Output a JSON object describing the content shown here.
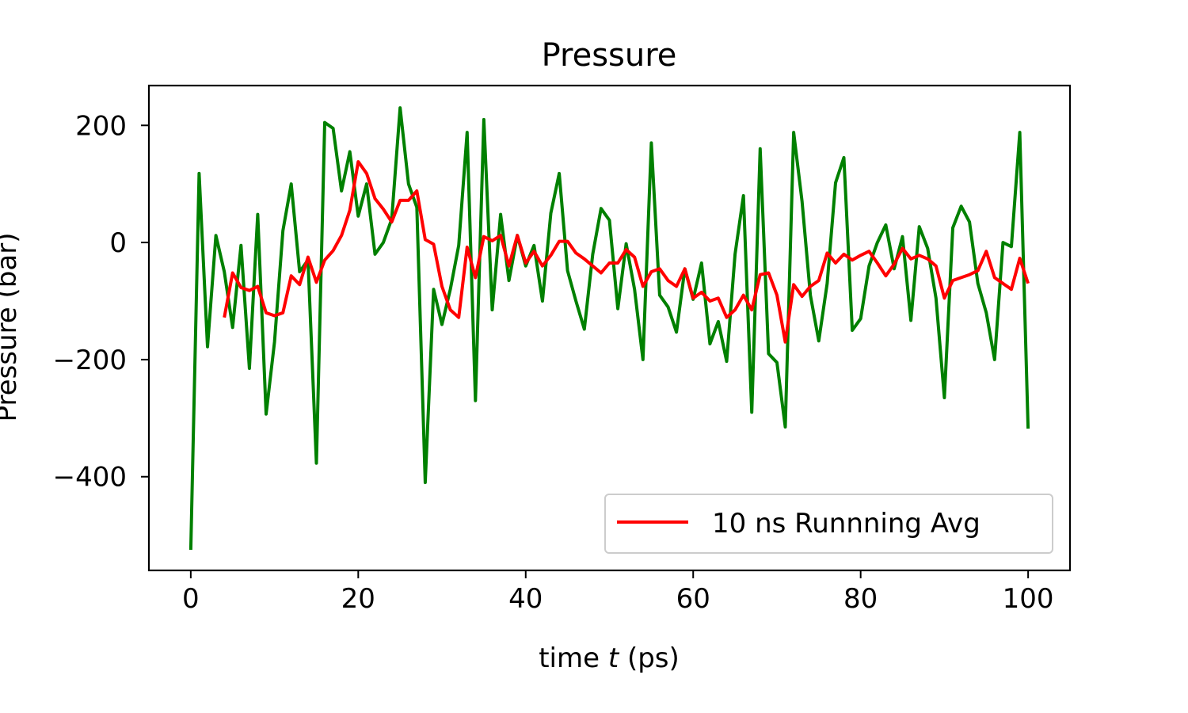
{
  "chart_data": {
    "type": "line",
    "title": "Pressure",
    "xlabel": "time t (ps)",
    "xlabel_prefix": "time ",
    "xlabel_var": "t",
    "xlabel_suffix": " (ps)",
    "ylabel": "Pressure (bar)",
    "xlim": [
      -5,
      105
    ],
    "ylim": [
      -560,
      268
    ],
    "xticks": [
      0,
      20,
      40,
      60,
      80,
      100
    ],
    "yticks": [
      200,
      0,
      -200,
      -400
    ],
    "ytick_labels": [
      "200",
      "0",
      "−200",
      "−400"
    ],
    "grid": false,
    "legend_position": "lower right",
    "series": [
      {
        "color": "#008000",
        "x": [
          0,
          1,
          2,
          3,
          4,
          5,
          6,
          7,
          8,
          9,
          10,
          11,
          12,
          13,
          14,
          15,
          16,
          17,
          18,
          19,
          20,
          21,
          22,
          23,
          24,
          25,
          26,
          27,
          28,
          29,
          30,
          31,
          32,
          33,
          34,
          35,
          36,
          37,
          38,
          39,
          40,
          41,
          42,
          43,
          44,
          45,
          46,
          47,
          48,
          49,
          50,
          51,
          52,
          53,
          54,
          55,
          56,
          57,
          58,
          59,
          60,
          61,
          62,
          63,
          64,
          65,
          66,
          67,
          68,
          69,
          70,
          71,
          72,
          73,
          74,
          75,
          76,
          77,
          78,
          79,
          80,
          81,
          82,
          83,
          84,
          85,
          86,
          87,
          88,
          89,
          90,
          91,
          92,
          93,
          94,
          95,
          96,
          97,
          98,
          99,
          100
        ],
        "values": [
          -525,
          118,
          -178,
          12,
          -50,
          -145,
          -5,
          -215,
          48,
          -293,
          -170,
          20,
          100,
          -50,
          -30,
          -377,
          205,
          195,
          88,
          155,
          45,
          100,
          -20,
          0,
          40,
          230,
          100,
          60,
          -410,
          -80,
          -140,
          -80,
          -5,
          188,
          -270,
          210,
          -115,
          48,
          -65,
          12,
          -40,
          -5,
          -100,
          50,
          118,
          -48,
          -100,
          -148,
          -20,
          58,
          38,
          -113,
          -2,
          -80,
          -200,
          170,
          -90,
          -110,
          -153,
          -45,
          -97,
          -35,
          -173,
          -135,
          -203,
          -20,
          80,
          -290,
          160,
          -190,
          -205,
          -315,
          188,
          70,
          -90,
          -168,
          -70,
          102,
          145,
          -150,
          -130,
          -40,
          0,
          30,
          -45,
          10,
          -133,
          27,
          -10,
          -95,
          -265,
          25,
          62,
          35,
          -70,
          -120,
          -200,
          0,
          -7,
          188,
          -318
        ]
      },
      {
        "name": "10 ns Runnning Avg",
        "color": "#ff0000",
        "x": [
          4,
          5,
          6,
          7,
          8,
          9,
          10,
          11,
          12,
          13,
          14,
          15,
          16,
          17,
          18,
          19,
          20,
          21,
          22,
          23,
          24,
          25,
          26,
          27,
          28,
          29,
          30,
          31,
          32,
          33,
          34,
          35,
          36,
          37,
          38,
          39,
          40,
          41,
          42,
          43,
          44,
          45,
          46,
          47,
          48,
          49,
          50,
          51,
          52,
          53,
          54,
          55,
          56,
          57,
          58,
          59,
          60,
          61,
          62,
          63,
          64,
          65,
          66,
          67,
          68,
          69,
          70,
          71,
          72,
          73,
          74,
          75,
          76,
          77,
          78,
          79,
          80,
          81,
          82,
          83,
          84,
          85,
          86,
          87,
          88,
          89,
          90,
          91,
          92,
          93,
          94,
          95,
          96,
          97,
          98,
          99,
          100
        ],
        "values": [
          -128,
          -52,
          -77,
          -82,
          -75,
          -120,
          -125,
          -120,
          -57,
          -72,
          -25,
          -68,
          -30,
          -14,
          12,
          55,
          138,
          118,
          75,
          57,
          35,
          72,
          72,
          88,
          5,
          -3,
          -75,
          -115,
          -128,
          -8,
          -60,
          10,
          3,
          12,
          -40,
          12,
          -35,
          -15,
          -40,
          -22,
          2,
          2,
          -18,
          -28,
          -40,
          -52,
          -35,
          -35,
          -12,
          -25,
          -75,
          -50,
          -45,
          -65,
          -75,
          -45,
          -95,
          -85,
          -100,
          -95,
          -128,
          -115,
          -90,
          -115,
          -55,
          -52,
          -90,
          -170,
          -72,
          -92,
          -75,
          -65,
          -18,
          -35,
          -20,
          -30,
          -22,
          -15,
          -35,
          -57,
          -37,
          -10,
          -28,
          -22,
          -28,
          -40,
          -95,
          -65,
          -60,
          -55,
          -48,
          -15,
          -60,
          -70,
          -80,
          -27,
          -70
        ]
      }
    ]
  }
}
